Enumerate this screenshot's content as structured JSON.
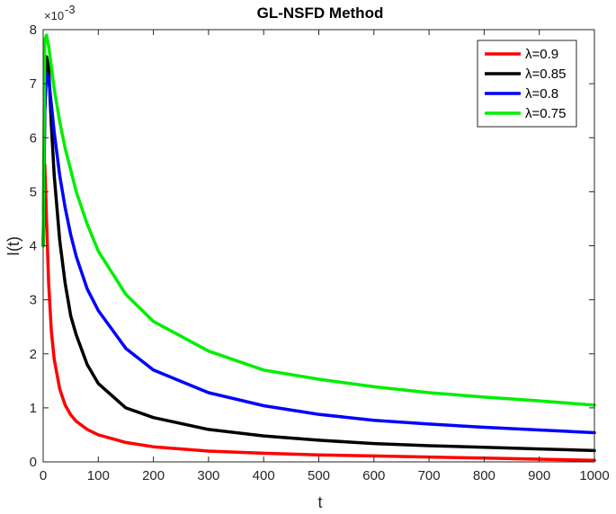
{
  "chart_data": {
    "type": "line",
    "title": "GL-NSFD Method",
    "xlabel": "t",
    "ylabel": "I(t)",
    "xlim": [
      0,
      1000
    ],
    "ylim": [
      0,
      0.008
    ],
    "y_multiplier_label": "×10",
    "y_multiplier_exp": "-3",
    "x_ticks": [
      "0",
      "100",
      "200",
      "300",
      "400",
      "500",
      "600",
      "700",
      "800",
      "900",
      "1000"
    ],
    "y_ticks": [
      "0",
      "1",
      "2",
      "3",
      "4",
      "5",
      "6",
      "7",
      "8"
    ],
    "grid": false,
    "legend_position": "top-right",
    "series": [
      {
        "name": "λ=0.9",
        "color": "#ff0000",
        "x": [
          0,
          3,
          6,
          10,
          15,
          20,
          30,
          40,
          50,
          60,
          80,
          100,
          150,
          200,
          300,
          400,
          500,
          600,
          700,
          800,
          900,
          1000
        ],
        "y": [
          0.004,
          0.0055,
          0.0045,
          0.0033,
          0.0024,
          0.0019,
          0.00135,
          0.00105,
          0.00087,
          0.00075,
          0.0006,
          0.0005,
          0.00036,
          0.00028,
          0.0002,
          0.00016,
          0.00013,
          0.00011,
          9e-05,
          7e-05,
          5e-05,
          3e-05
        ]
      },
      {
        "name": "λ=0.85",
        "color": "#000000",
        "x": [
          0,
          3,
          6,
          10,
          15,
          20,
          30,
          40,
          50,
          60,
          80,
          100,
          150,
          200,
          300,
          400,
          500,
          600,
          700,
          800,
          900,
          1000
        ],
        "y": [
          0.004,
          0.0066,
          0.0075,
          0.0073,
          0.0062,
          0.0053,
          0.0041,
          0.0033,
          0.0027,
          0.00235,
          0.0018,
          0.00145,
          0.001,
          0.00082,
          0.0006,
          0.00048,
          0.0004,
          0.00034,
          0.0003,
          0.00027,
          0.00024,
          0.00021
        ]
      },
      {
        "name": "λ=0.8",
        "color": "#0000ff",
        "x": [
          0,
          3,
          6,
          10,
          15,
          20,
          30,
          40,
          50,
          60,
          80,
          100,
          150,
          200,
          300,
          400,
          500,
          600,
          700,
          800,
          900,
          1000
        ],
        "y": [
          0.004,
          0.0065,
          0.0072,
          0.0071,
          0.0066,
          0.0061,
          0.0053,
          0.0047,
          0.0042,
          0.0038,
          0.0032,
          0.0028,
          0.0021,
          0.0017,
          0.00128,
          0.00104,
          0.00088,
          0.00077,
          0.0007,
          0.00064,
          0.00059,
          0.00054
        ]
      },
      {
        "name": "λ=0.75",
        "color": "#00ee00",
        "x": [
          0,
          3,
          6,
          10,
          15,
          20,
          30,
          40,
          50,
          60,
          80,
          100,
          150,
          200,
          300,
          400,
          500,
          600,
          700,
          800,
          900,
          1000
        ],
        "y": [
          0.004,
          0.0078,
          0.0079,
          0.0077,
          0.0073,
          0.0069,
          0.0063,
          0.0058,
          0.0054,
          0.005,
          0.0044,
          0.0039,
          0.0031,
          0.0026,
          0.00205,
          0.0017,
          0.00153,
          0.00139,
          0.00128,
          0.0012,
          0.00113,
          0.00105
        ]
      }
    ]
  }
}
